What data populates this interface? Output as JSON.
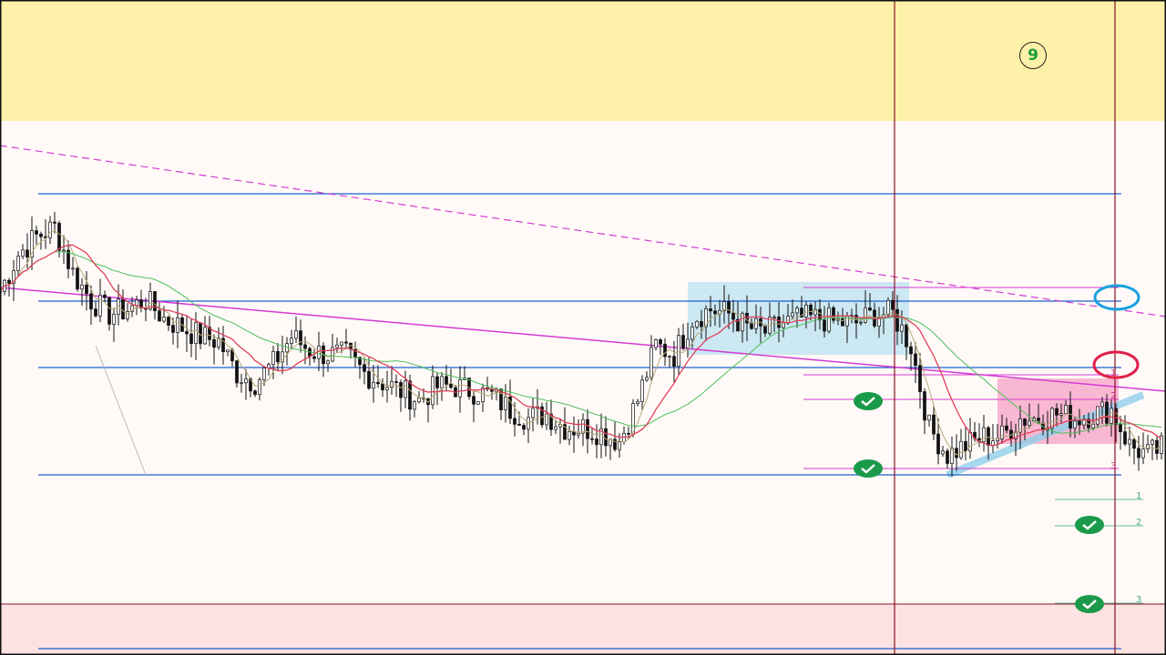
{
  "badge": {
    "label": "9"
  },
  "colors": {
    "top_band": "#fdf0a8",
    "bottom_band": "#fde2e2",
    "level_line": "#1d5fcf",
    "trend_line": "#d43bd4",
    "session_line": "#8b1020",
    "check": "#1a9a4a",
    "range_box_blue": "#bfe4f0",
    "range_box_pink": "#f7a8c8"
  },
  "target_labels_pink": [
    "1",
    "2",
    "3"
  ],
  "target_labels_green": [
    "1",
    "2",
    "3"
  ],
  "icons": [
    "check-circle-icon",
    "blue-ellipse-marker",
    "red-ellipse-marker"
  ],
  "chart_data": {
    "type": "candlestick",
    "title": "",
    "xlabel": "",
    "ylabel": "",
    "grid": false,
    "close": [
      400,
      440,
      460,
      470,
      420,
      390,
      375,
      380,
      390,
      370,
      360,
      350,
      345,
      310,
      300,
      320,
      350,
      335,
      330,
      330,
      310,
      300,
      290,
      280,
      295,
      295,
      290,
      285,
      270,
      260,
      265,
      250,
      250,
      245,
      235,
      280,
      340,
      330,
      370,
      380,
      375,
      360,
      355,
      365,
      370,
      370,
      365,
      365,
      375,
      375,
      340,
      250,
      220,
      230,
      240,
      240,
      260,
      260,
      265,
      260,
      265,
      270,
      230,
      220,
      230
    ],
    "horizontal_levels": [
      507,
      389,
      316,
      198,
      7
    ],
    "moving_averages": [
      "red",
      "green",
      "khaki"
    ]
  }
}
